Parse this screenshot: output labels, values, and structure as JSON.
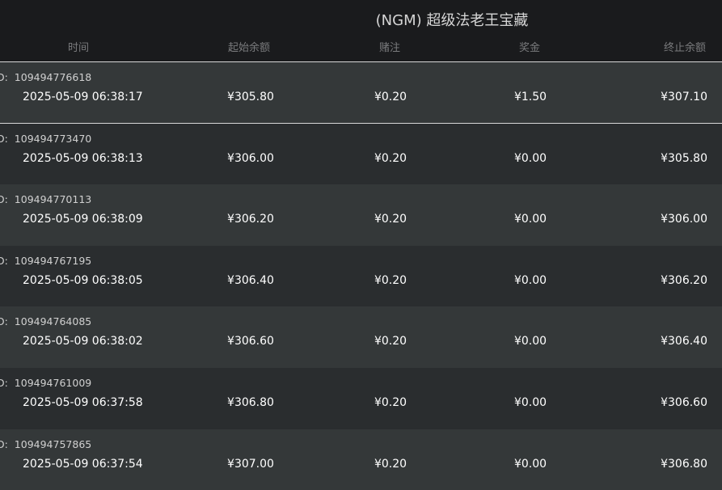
{
  "header": {
    "title": "(NGM) 超级法老王宝藏",
    "columns": [
      "时间",
      "起始余额",
      "赌注",
      "奖金",
      "终止余额"
    ]
  },
  "id_prefix": "D:  ",
  "rows": [
    {
      "id": "109494776618",
      "time": "2025-05-09 06:38:17",
      "start": "¥305.80",
      "bet": "¥0.20",
      "bonus": "¥1.50",
      "end": "¥307.10"
    },
    {
      "id": "109494773470",
      "time": "2025-05-09 06:38:13",
      "start": "¥306.00",
      "bet": "¥0.20",
      "bonus": "¥0.00",
      "end": "¥305.80"
    },
    {
      "id": "109494770113",
      "time": "2025-05-09 06:38:09",
      "start": "¥306.20",
      "bet": "¥0.20",
      "bonus": "¥0.00",
      "end": "¥306.00"
    },
    {
      "id": "109494767195",
      "time": "2025-05-09 06:38:05",
      "start": "¥306.40",
      "bet": "¥0.20",
      "bonus": "¥0.00",
      "end": "¥306.20"
    },
    {
      "id": "109494764085",
      "time": "2025-05-09 06:38:02",
      "start": "¥306.60",
      "bet": "¥0.20",
      "bonus": "¥0.00",
      "end": "¥306.40"
    },
    {
      "id": "109494761009",
      "time": "2025-05-09 06:37:58",
      "start": "¥306.80",
      "bet": "¥0.20",
      "bonus": "¥0.00",
      "end": "¥306.60"
    },
    {
      "id": "109494757865",
      "time": "2025-05-09 06:37:54",
      "start": "¥307.00",
      "bet": "¥0.20",
      "bonus": "¥0.00",
      "end": "¥306.80"
    }
  ]
}
